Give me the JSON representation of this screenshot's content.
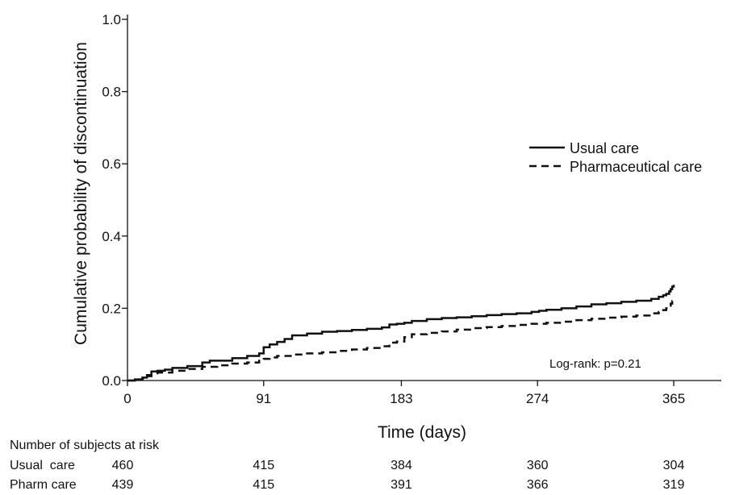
{
  "chart_data": {
    "type": "line",
    "xlabel": "Time (days)",
    "ylabel": "Cumulative probability of discontinuation",
    "xlim": [
      0,
      400
    ],
    "ylim": [
      0,
      1.0
    ],
    "x_ticks": [
      0,
      91,
      183,
      274,
      365
    ],
    "x_tick_labels": [
      "0",
      "91",
      "183",
      "274",
      "365"
    ],
    "y_ticks": [
      0.0,
      0.2,
      0.4,
      0.6,
      0.8,
      1.0
    ],
    "y_tick_labels": [
      "0.0",
      "0.2",
      "0.4",
      "0.6",
      "0.8",
      "1.0"
    ],
    "grid": false,
    "legend_position": "right",
    "series": [
      {
        "name": "Usual care",
        "style": "solid",
        "color": "#111111",
        "x": [
          0,
          5,
          10,
          13,
          16,
          20,
          25,
          30,
          40,
          50,
          55,
          70,
          80,
          88,
          91,
          95,
          100,
          105,
          110,
          120,
          130,
          140,
          150,
          160,
          170,
          175,
          180,
          185,
          190,
          200,
          210,
          220,
          230,
          240,
          250,
          260,
          270,
          275,
          280,
          290,
          300,
          310,
          320,
          330,
          340,
          350,
          355,
          358,
          360,
          362,
          363,
          364,
          365
        ],
        "y": [
          0,
          0.003,
          0.008,
          0.015,
          0.025,
          0.027,
          0.03,
          0.035,
          0.04,
          0.05,
          0.055,
          0.062,
          0.068,
          0.075,
          0.092,
          0.1,
          0.107,
          0.115,
          0.125,
          0.13,
          0.135,
          0.137,
          0.14,
          0.143,
          0.147,
          0.155,
          0.157,
          0.16,
          0.165,
          0.17,
          0.173,
          0.175,
          0.178,
          0.181,
          0.184,
          0.186,
          0.19,
          0.193,
          0.196,
          0.2,
          0.205,
          0.211,
          0.214,
          0.218,
          0.221,
          0.226,
          0.232,
          0.236,
          0.24,
          0.247,
          0.253,
          0.26,
          0.265
        ]
      },
      {
        "name": "Pharmaceutical care",
        "style": "dashed",
        "color": "#111111",
        "x": [
          0,
          5,
          10,
          13,
          16,
          20,
          30,
          40,
          50,
          60,
          70,
          80,
          88,
          91,
          95,
          100,
          110,
          120,
          130,
          140,
          150,
          160,
          170,
          175,
          180,
          185,
          190,
          200,
          210,
          220,
          230,
          240,
          250,
          260,
          270,
          280,
          290,
          300,
          310,
          320,
          330,
          340,
          350,
          355,
          358,
          360,
          362,
          363,
          364,
          365
        ],
        "y": [
          0,
          0.003,
          0.007,
          0.012,
          0.02,
          0.022,
          0.027,
          0.032,
          0.038,
          0.042,
          0.047,
          0.05,
          0.055,
          0.06,
          0.064,
          0.068,
          0.072,
          0.075,
          0.078,
          0.082,
          0.086,
          0.09,
          0.095,
          0.105,
          0.108,
          0.12,
          0.128,
          0.132,
          0.136,
          0.141,
          0.145,
          0.148,
          0.151,
          0.154,
          0.157,
          0.16,
          0.163,
          0.167,
          0.171,
          0.174,
          0.177,
          0.18,
          0.186,
          0.19,
          0.195,
          0.2,
          0.207,
          0.213,
          0.22,
          0.225
        ]
      }
    ],
    "annotation": "Log-rank: p=0.21"
  },
  "risk_table": {
    "title": "Number of subjects at risk",
    "rows": [
      {
        "label": "Usual  care",
        "values": [
          "460",
          "415",
          "384",
          "360",
          "304"
        ]
      },
      {
        "label": "Pharm care",
        "values": [
          "439",
          "415",
          "391",
          "366",
          "319"
        ]
      }
    ]
  }
}
